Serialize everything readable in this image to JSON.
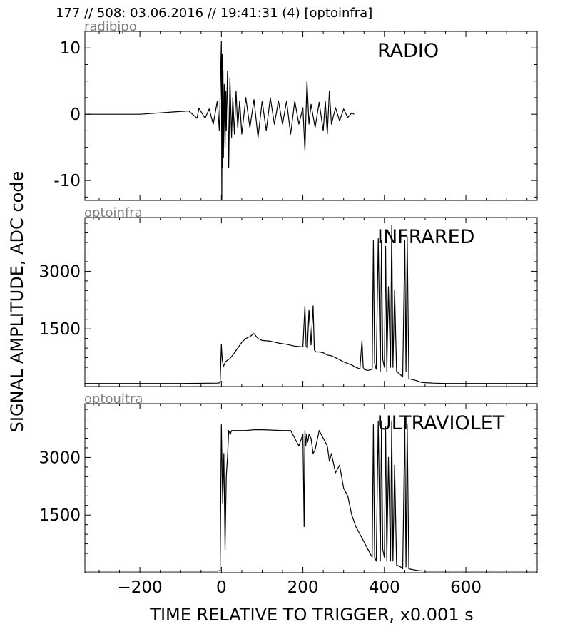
{
  "header": {
    "title": "177 // 508:   03.06.2016 // 19:41:31 (4)  [optoinfra]"
  },
  "chart_data": {
    "type": "line",
    "ylabel": "SIGNAL AMPLITUDE,  ADC code",
    "xlabel": "TIME RELATIVE TO TRIGGER,   x0.001 s",
    "xlim": [
      -335,
      775
    ],
    "xticks": [
      -200,
      0,
      200,
      400,
      600
    ],
    "panels": [
      {
        "source": "radibipo",
        "title": "RADIO",
        "ylim": [
          -13,
          12.5
        ],
        "yticks": [
          -10,
          0,
          10
        ],
        "series": [
          {
            "x": [
              -335,
              -200,
              -80,
              -60,
              -55,
              -40,
              -30,
              -20,
              -10,
              -5,
              0,
              1,
              2,
              3,
              4,
              5,
              7,
              9,
              11,
              12,
              15,
              18,
              21,
              25,
              28,
              32,
              36,
              40,
              45,
              50,
              60,
              70,
              80,
              90,
              100,
              110,
              120,
              130,
              140,
              150,
              160,
              170,
              180,
              190,
              200,
              205,
              210,
              215,
              220,
              230,
              240,
              250,
              255,
              260,
              265,
              270,
              280,
              290,
              300,
              310,
              320,
              326
            ],
            "y": [
              0,
              0,
              0.5,
              -0.6,
              0.9,
              -0.6,
              0.8,
              -1.5,
              2.0,
              -2.5,
              11,
              -13,
              9,
              -8,
              6.5,
              -6.5,
              4.5,
              -5,
              3.5,
              -2.5,
              6.5,
              -8,
              5.5,
              -3.5,
              2.5,
              -3,
              3.5,
              -2,
              2,
              -3,
              2.5,
              -2,
              2.2,
              -3.5,
              2,
              -2.5,
              2.5,
              -1.5,
              2,
              -1.5,
              2,
              -3,
              2,
              -1.5,
              1,
              -5.5,
              5,
              -1.5,
              1.5,
              -2,
              1.8,
              -2.5,
              2,
              -3,
              3.5,
              -1.5,
              1,
              -1,
              0.8,
              -0.5,
              0.2,
              0
            ]
          }
        ]
      },
      {
        "source": "optoinfra",
        "title": "INFRARED",
        "ylim": [
          0,
          4400
        ],
        "yticks": [
          1500,
          3000
        ],
        "series": [
          {
            "x": [
              -335,
              -100,
              -10,
              -3,
              0,
              2,
              5,
              10,
              20,
              30,
              40,
              50,
              60,
              70,
              80,
              90,
              100,
              120,
              140,
              160,
              180,
              200,
              205,
              208,
              211,
              215,
              220,
              225,
              228,
              232,
              240,
              250,
              260,
              270,
              280,
              290,
              300,
              310,
              320,
              330,
              340,
              345,
              348,
              351,
              360,
              370,
              373,
              376,
              380,
              385,
              390,
              393,
              396,
              400,
              403,
              406,
              410,
              415,
              418,
              421,
              425,
              430,
              440,
              445,
              450,
              453,
              456,
              460,
              470,
              480,
              490,
              500,
              520,
              550,
              600,
              650,
              700,
              775
            ],
            "y": [
              80,
              80,
              90,
              100,
              1100,
              700,
              520,
              650,
              720,
              850,
              1000,
              1150,
              1250,
              1300,
              1380,
              1250,
              1200,
              1180,
              1130,
              1100,
              1050,
              1030,
              2100,
              1050,
              1000,
              2000,
              1080,
              2100,
              950,
              900,
              900,
              880,
              820,
              800,
              750,
              700,
              640,
              600,
              560,
              500,
              460,
              1200,
              500,
              440,
              420,
              450,
              3800,
              600,
              450,
              3850,
              400,
              3800,
              700,
              500,
              3650,
              400,
              2600,
              500,
              4200,
              500,
              2500,
              400,
              300,
              250,
              3800,
              400,
              3900,
              200,
              180,
              150,
              110,
              100,
              90,
              80,
              80,
              80,
              80,
              80
            ]
          }
        ]
      },
      {
        "source": "optoultra",
        "title": "ULTRAVIOLET",
        "ylim": [
          0,
          4400
        ],
        "yticks": [
          1500,
          3000
        ],
        "series": [
          {
            "x": [
              -335,
              -100,
              -10,
              -3,
              0,
              3,
              6,
              9,
              12,
              15,
              18,
              22,
              25,
              30,
              40,
              60,
              80,
              100,
              150,
              170,
              180,
              190,
              200,
              203,
              205,
              207,
              209,
              212,
              215,
              220,
              225,
              230,
              240,
              250,
              260,
              265,
              270,
              280,
              290,
              300,
              310,
              320,
              330,
              340,
              350,
              360,
              370,
              373,
              376,
              380,
              385,
              390,
              393,
              396,
              400,
              403,
              406,
              410,
              415,
              418,
              421,
              425,
              430,
              440,
              445,
              450,
              453,
              456,
              460,
              470,
              480,
              490,
              500,
              520,
              550,
              600,
              650,
              700,
              775
            ],
            "y": [
              40,
              40,
              40,
              60,
              3850,
              1800,
              3100,
              600,
              2500,
              3000,
              3700,
              3600,
              3700,
              3700,
              3700,
              3700,
              3720,
              3720,
              3700,
              3700,
              3500,
              3300,
              3600,
              1200,
              3700,
              3300,
              3600,
              3400,
              3600,
              3500,
              3100,
              3200,
              3700,
              3500,
              3300,
              2900,
              3100,
              2600,
              2800,
              2200,
              2000,
              1500,
              1200,
              1000,
              800,
              600,
              400,
              3850,
              400,
              300,
              3950,
              300,
              3950,
              600,
              400,
              3800,
              300,
              3000,
              300,
              3950,
              300,
              2800,
              200,
              150,
              100,
              3850,
              150,
              3850,
              100,
              80,
              60,
              50,
              40,
              40,
              40,
              40,
              40,
              40,
              40
            ]
          }
        ]
      }
    ]
  }
}
